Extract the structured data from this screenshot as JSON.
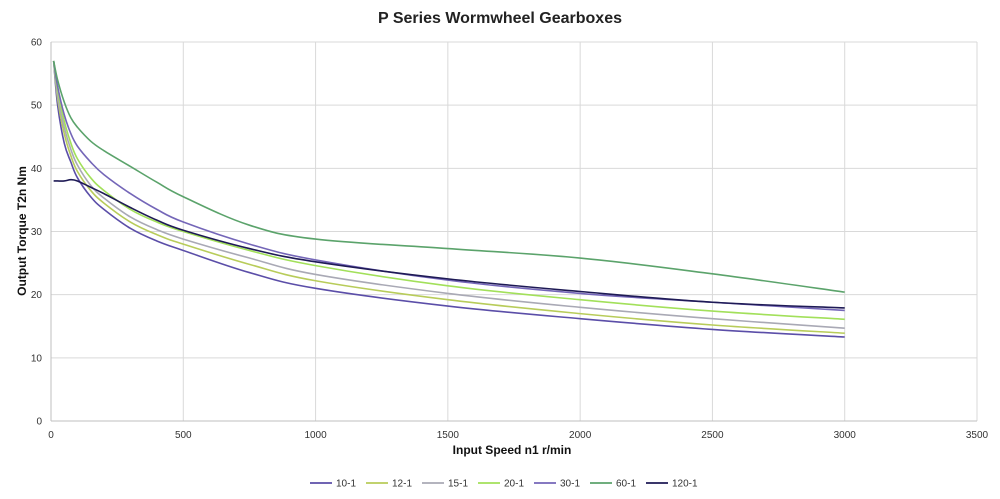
{
  "chart_data": {
    "type": "line",
    "title": "P Series Wormwheel Gearboxes",
    "xlabel": "Input Speed n1 r/min",
    "ylabel": "Output Torque T2n Nm",
    "xlim": [
      0,
      3500
    ],
    "ylim": [
      0,
      60
    ],
    "xticks": [
      0,
      500,
      1000,
      1500,
      2000,
      2500,
      3000,
      3500
    ],
    "yticks": [
      0,
      10,
      20,
      30,
      40,
      50,
      60
    ],
    "grid": true,
    "legend_position": "bottom",
    "series": [
      {
        "name": "10-1",
        "color": "#5b4ea8",
        "x": [
          10,
          25,
          50,
          75,
          100,
          150,
          200,
          300,
          400,
          500,
          750,
          1000,
          1500,
          2000,
          2500,
          3000
        ],
        "y": [
          57,
          50,
          44,
          41,
          38.5,
          35.5,
          33.5,
          30.5,
          28.5,
          27,
          23.5,
          21,
          18.2,
          16.2,
          14.5,
          13.3
        ]
      },
      {
        "name": "12-1",
        "color": "#b8cc5a",
        "x": [
          10,
          25,
          50,
          75,
          100,
          150,
          200,
          300,
          400,
          500,
          750,
          1000,
          1500,
          2000,
          2500,
          3000
        ],
        "y": [
          57,
          51,
          45.5,
          42,
          39.5,
          36.5,
          34.5,
          31.5,
          29.5,
          28,
          24.8,
          22.2,
          19.2,
          17,
          15.2,
          13.9
        ]
      },
      {
        "name": "15-1",
        "color": "#a9a9b5",
        "x": [
          10,
          25,
          50,
          75,
          100,
          150,
          200,
          300,
          400,
          500,
          750,
          1000,
          1500,
          2000,
          2500,
          3000
        ],
        "y": [
          57,
          51.5,
          46.5,
          43,
          40.5,
          37.3,
          35.3,
          32.3,
          30.3,
          28.8,
          25.8,
          23.2,
          20.2,
          18,
          16.2,
          14.7
        ]
      },
      {
        "name": "20-1",
        "color": "#a2e05a",
        "x": [
          10,
          25,
          50,
          75,
          100,
          150,
          200,
          300,
          400,
          500,
          750,
          1000,
          1500,
          2000,
          2500,
          3000
        ],
        "y": [
          57,
          52.5,
          47.5,
          44,
          41.5,
          38.5,
          36.5,
          33.5,
          31.5,
          30,
          27,
          24.6,
          21.4,
          19.2,
          17.4,
          16.1
        ]
      },
      {
        "name": "30-1",
        "color": "#7466b8",
        "x": [
          10,
          25,
          50,
          75,
          100,
          150,
          200,
          300,
          400,
          500,
          750,
          1000,
          1500,
          2000,
          2500,
          3000
        ],
        "y": [
          57,
          53,
          48.5,
          45.5,
          43.5,
          41,
          39,
          36,
          33.5,
          31.5,
          28,
          25.5,
          22.3,
          20.2,
          18.8,
          17.5
        ]
      },
      {
        "name": "60-1",
        "color": "#5ba36b",
        "x": [
          10,
          25,
          50,
          75,
          100,
          150,
          200,
          300,
          400,
          500,
          750,
          1000,
          1500,
          2000,
          2500,
          3000
        ],
        "y": [
          57,
          54,
          50.5,
          48,
          46.5,
          44.3,
          42.8,
          40.3,
          37.8,
          35.5,
          31,
          28.8,
          27.3,
          25.8,
          23.3,
          20.4
        ]
      },
      {
        "name": "120-1",
        "color": "#1e1a55",
        "x": [
          10,
          25,
          50,
          75,
          100,
          150,
          200,
          300,
          400,
          500,
          750,
          1000,
          1500,
          2000,
          2500,
          3000
        ],
        "y": [
          38,
          38,
          38,
          38.2,
          38,
          37,
          36,
          33.8,
          31.8,
          30.2,
          27.3,
          25.2,
          22.5,
          20.5,
          18.8,
          17.9
        ]
      }
    ]
  }
}
